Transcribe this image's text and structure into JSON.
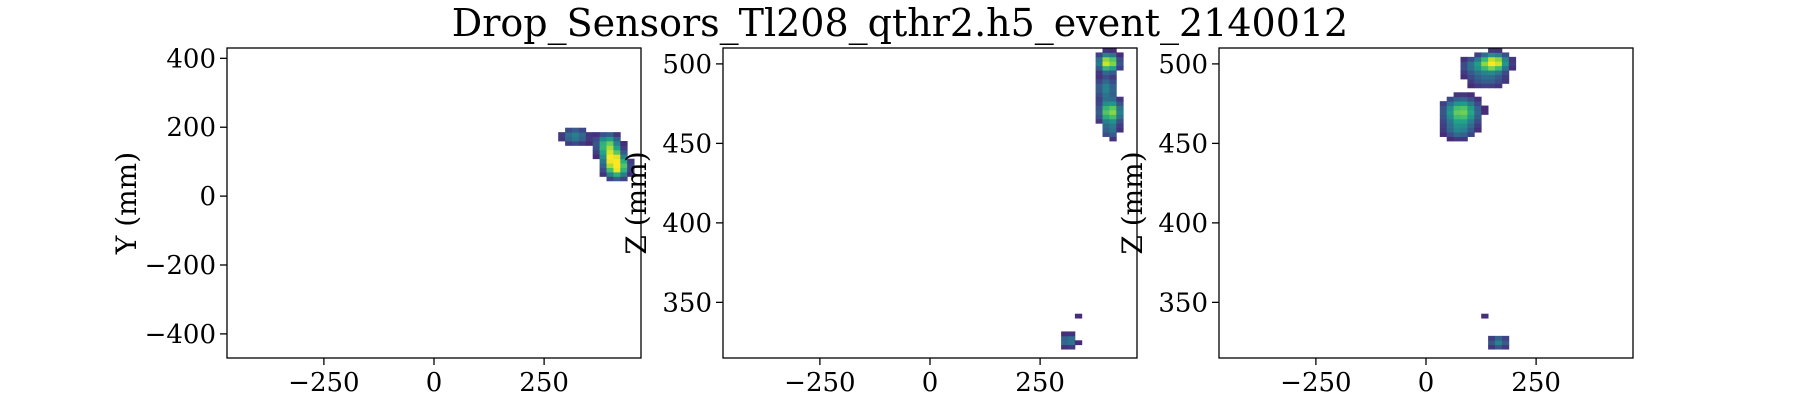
{
  "figure": {
    "title": "Drop_Sensors_Tl208_qthr2.h5_event_2140012"
  },
  "colors": {
    "colormap": "viridis",
    "axes_frame": "#000000",
    "background": "#ffffff"
  },
  "chart_data": [
    {
      "type": "heatmap",
      "panel": "left",
      "xlabel": "",
      "ylabel": "Y (mm)",
      "xlim": [
        -470,
        470
      ],
      "ylim": [
        -470,
        430
      ],
      "xticks": [
        -250,
        0,
        250
      ],
      "yticks": [
        -400,
        -200,
        0,
        200,
        400
      ],
      "xtick_labels": [
        "−250",
        "0",
        "250"
      ],
      "ytick_labels": [
        "−400",
        "−200",
        "0",
        "200",
        "400"
      ],
      "grid": false,
      "blobs": [
        {
          "x": 320,
          "y": 175,
          "amp": 0.45,
          "sx": 22,
          "sy": 18
        },
        {
          "x": 395,
          "y": 150,
          "amp": 0.75,
          "sx": 18,
          "sy": 22
        },
        {
          "x": 415,
          "y": 85,
          "amp": 1.0,
          "sx": 18,
          "sy": 22
        },
        {
          "x": 405,
          "y": 115,
          "amp": 0.55,
          "sx": 16,
          "sy": 18
        }
      ]
    },
    {
      "type": "heatmap",
      "panel": "middle",
      "xlabel": "",
      "ylabel": "Z (mm)",
      "xlim": [
        -470,
        470
      ],
      "ylim": [
        315,
        510
      ],
      "xticks": [
        -250,
        0,
        250
      ],
      "yticks": [
        350,
        400,
        450,
        500
      ],
      "xtick_labels": [
        "−250",
        "0",
        "250"
      ],
      "ytick_labels": [
        "350",
        "400",
        "450",
        "500"
      ],
      "grid": false,
      "blobs": [
        {
          "x": 405,
          "y": 501,
          "amp": 1.0,
          "sx": 16,
          "sy": 4
        },
        {
          "x": 400,
          "y": 485,
          "amp": 0.45,
          "sx": 18,
          "sy": 5
        },
        {
          "x": 410,
          "y": 470,
          "amp": 0.85,
          "sx": 18,
          "sy": 5
        },
        {
          "x": 410,
          "y": 458,
          "amp": 0.35,
          "sx": 14,
          "sy": 4
        },
        {
          "x": 315,
          "y": 326,
          "amp": 0.45,
          "sx": 14,
          "sy": 3
        },
        {
          "x": 340,
          "y": 341,
          "amp": 0.15,
          "sx": 10,
          "sy": 1
        }
      ]
    },
    {
      "type": "heatmap",
      "panel": "right",
      "xlabel": "",
      "ylabel": "Z (mm)",
      "xlim": [
        -470,
        470
      ],
      "ylim": [
        315,
        510
      ],
      "xticks": [
        -250,
        0,
        250
      ],
      "yticks": [
        350,
        400,
        450,
        500
      ],
      "xtick_labels": [
        "−250",
        "0",
        "250"
      ],
      "ytick_labels": [
        "350",
        "400",
        "450",
        "500"
      ],
      "grid": false,
      "blobs": [
        {
          "x": 155,
          "y": 501,
          "amp": 1.0,
          "sx": 22,
          "sy": 4
        },
        {
          "x": 110,
          "y": 499,
          "amp": 0.35,
          "sx": 25,
          "sy": 4
        },
        {
          "x": 140,
          "y": 490,
          "amp": 0.3,
          "sx": 35,
          "sy": 4
        },
        {
          "x": 80,
          "y": 470,
          "amp": 0.8,
          "sx": 28,
          "sy": 6
        },
        {
          "x": 75,
          "y": 458,
          "amp": 0.35,
          "sx": 25,
          "sy": 4
        },
        {
          "x": 165,
          "y": 325,
          "amp": 0.45,
          "sx": 16,
          "sy": 3
        },
        {
          "x": 135,
          "y": 341,
          "amp": 0.15,
          "sx": 10,
          "sy": 1
        }
      ]
    }
  ]
}
